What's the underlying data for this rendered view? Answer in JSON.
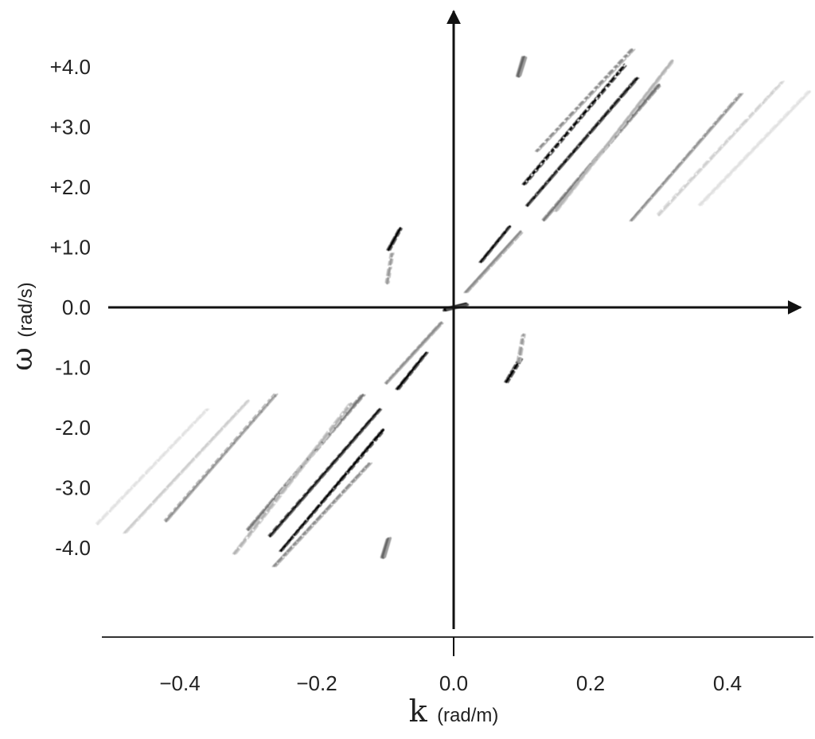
{
  "chart_data": {
    "type": "heatmap",
    "title": "",
    "xlabel": {
      "symbol": "k",
      "unit": "(rad/m)"
    },
    "ylabel": {
      "symbol": "ω",
      "unit": "(rad/s)"
    },
    "xlim": [
      -0.52,
      0.52
    ],
    "ylim": [
      -5.3,
      4.9
    ],
    "xticks": [
      {
        "value": -0.4,
        "label": "−0.4"
      },
      {
        "value": -0.2,
        "label": "−0.2"
      },
      {
        "value": 0.0,
        "label": "0.0"
      },
      {
        "value": 0.2,
        "label": "0.2"
      },
      {
        "value": 0.4,
        "label": "0.4"
      }
    ],
    "yticks": [
      {
        "value": 4.0,
        "label": "+4.0"
      },
      {
        "value": 3.0,
        "label": "+3.0"
      },
      {
        "value": 2.0,
        "label": "+2.0"
      },
      {
        "value": 1.0,
        "label": "+1.0"
      },
      {
        "value": 0.0,
        "label": "0.0"
      },
      {
        "value": -1.0,
        "label": "-1.0"
      },
      {
        "value": -2.0,
        "label": "-2.0"
      },
      {
        "value": -3.0,
        "label": "-3.0"
      },
      {
        "value": -4.0,
        "label": "-4.0"
      }
    ],
    "grid": false,
    "colormap": "grayscale (white = low, black = high intensity)",
    "streaks": [
      {
        "k": [
          0.103,
          0.252
        ],
        "w": [
          2.05,
          4.05
        ],
        "intensity": 1.0
      },
      {
        "k": [
          0.108,
          0.268
        ],
        "w": [
          1.7,
          3.8
        ],
        "intensity": 0.95
      },
      {
        "k": [
          0.132,
          0.3
        ],
        "w": [
          1.45,
          3.7
        ],
        "intensity": 0.55
      },
      {
        "k": [
          0.122,
          0.262
        ],
        "w": [
          2.6,
          4.3
        ],
        "intensity": 0.45
      },
      {
        "k": [
          0.15,
          0.32
        ],
        "w": [
          1.6,
          4.1
        ],
        "intensity": 0.3
      },
      {
        "k": [
          0.26,
          0.42
        ],
        "w": [
          1.45,
          3.55
        ],
        "intensity": 0.45
      },
      {
        "k": [
          0.3,
          0.48
        ],
        "w": [
          1.55,
          3.75
        ],
        "intensity": 0.2
      },
      {
        "k": [
          0.36,
          0.52
        ],
        "w": [
          1.7,
          3.6
        ],
        "intensity": 0.12
      },
      {
        "k": [
          0.04,
          0.082
        ],
        "w": [
          0.75,
          1.35
        ],
        "intensity": 1.0
      },
      {
        "k": [
          0.018,
          0.098
        ],
        "w": [
          0.25,
          1.25
        ],
        "intensity": 0.45
      },
      {
        "k": [
          0.095,
          0.103
        ],
        "w": [
          3.85,
          4.15
        ],
        "intensity": 0.6
      },
      {
        "k": [
          -0.095,
          -0.078
        ],
        "w": [
          0.95,
          1.3
        ],
        "intensity": 1.0
      },
      {
        "k": [
          -0.097,
          -0.09
        ],
        "w": [
          0.4,
          0.9
        ],
        "intensity": 0.4
      },
      {
        "k": [
          0.077,
          0.098
        ],
        "w": [
          -1.25,
          -0.85
        ],
        "intensity": 1.0
      },
      {
        "k": [
          0.095,
          0.102
        ],
        "w": [
          -0.9,
          -0.45
        ],
        "intensity": 0.4
      },
      {
        "k": [
          -0.082,
          -0.04
        ],
        "w": [
          -1.35,
          -0.75
        ],
        "intensity": 1.0
      },
      {
        "k": [
          -0.098,
          -0.018
        ],
        "w": [
          -1.25,
          -0.25
        ],
        "intensity": 0.45
      },
      {
        "k": [
          -0.252,
          -0.103
        ],
        "w": [
          -4.05,
          -2.05
        ],
        "intensity": 1.0
      },
      {
        "k": [
          -0.268,
          -0.108
        ],
        "w": [
          -3.8,
          -1.7
        ],
        "intensity": 0.95
      },
      {
        "k": [
          -0.3,
          -0.132
        ],
        "w": [
          -3.7,
          -1.45
        ],
        "intensity": 0.55
      },
      {
        "k": [
          -0.262,
          -0.122
        ],
        "w": [
          -4.3,
          -2.6
        ],
        "intensity": 0.45
      },
      {
        "k": [
          -0.32,
          -0.15
        ],
        "w": [
          -4.1,
          -1.6
        ],
        "intensity": 0.3
      },
      {
        "k": [
          -0.42,
          -0.26
        ],
        "w": [
          -3.55,
          -1.45
        ],
        "intensity": 0.45
      },
      {
        "k": [
          -0.48,
          -0.3
        ],
        "w": [
          -3.75,
          -1.55
        ],
        "intensity": 0.2
      },
      {
        "k": [
          -0.52,
          -0.36
        ],
        "w": [
          -3.6,
          -1.7
        ],
        "intensity": 0.12
      },
      {
        "k": [
          -0.103,
          -0.095
        ],
        "w": [
          -4.15,
          -3.85
        ],
        "intensity": 0.6
      },
      {
        "k": [
          -0.012,
          0.018
        ],
        "w": [
          -0.04,
          0.04
        ],
        "intensity": 1.0
      }
    ]
  }
}
